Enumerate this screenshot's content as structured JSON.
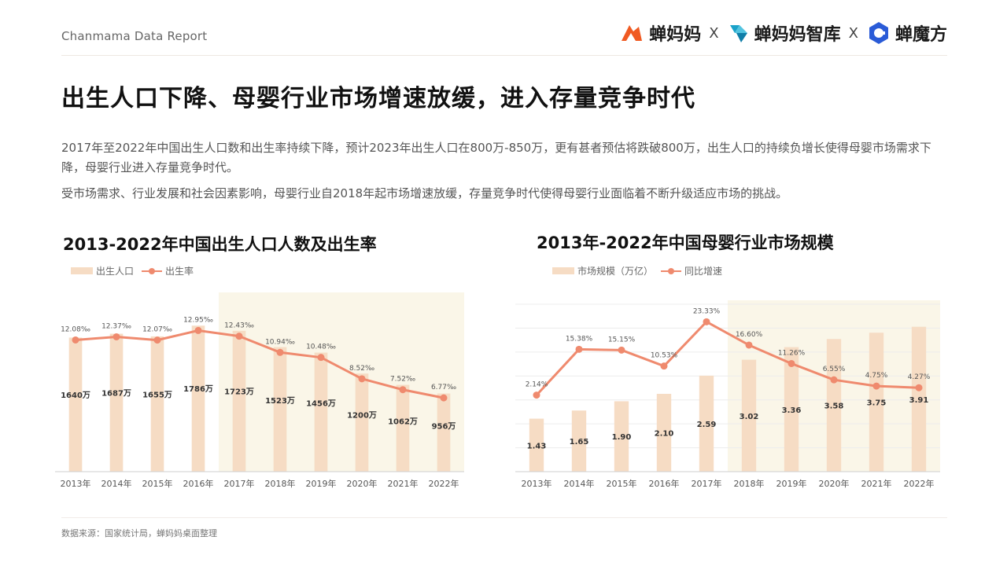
{
  "header": {
    "brand_tag": "Chanmama Data Report",
    "logos": [
      {
        "name": "蝉妈妈",
        "color": "#f05a22"
      },
      {
        "name": "蝉妈妈智库",
        "color": "#1aa2c9"
      },
      {
        "name": "蝉魔方",
        "color": "#2a5bd7"
      }
    ],
    "separator": "X"
  },
  "page": {
    "title": "出生人口下降、母婴行业市场增速放缓，进入存量竞争时代",
    "paragraph1": "2017年至2022年中国出生人口数和出生率持续下降，预计2023年出生人口在800万-850万，更有甚者预估将跌破800万，出生人口的持续负增长使得母婴市场需求下降，母婴行业进入存量竞争时代。",
    "paragraph2": "受市场需求、行业发展和社会因素影响，母婴行业自2018年起市场增速放缓，存量竞争时代使得母婴行业面临着不断升级适应市场的挑战。"
  },
  "footer": {
    "source": "数据来源：国家统计局，蝉妈妈桌面整理"
  },
  "colors": {
    "bar": "#f6dcc4",
    "line": "#ef8a6e",
    "highlight": "#faf6e8"
  },
  "chart_data": [
    {
      "type": "bar+line",
      "title": "2013-2022年中国出生人口人数及出生率",
      "categories": [
        "2013年",
        "2014年",
        "2015年",
        "2016年",
        "2017年",
        "2018年",
        "2019年",
        "2020年",
        "2021年",
        "2022年"
      ],
      "series": [
        {
          "name": "出生人口",
          "type": "bar",
          "values": [
            1640,
            1687,
            1655,
            1786,
            1723,
            1523,
            1456,
            1200,
            1062,
            956
          ],
          "labels": [
            "1640万",
            "1687万",
            "1655万",
            "1786万",
            "1723万",
            "1523万",
            "1456万",
            "1200万",
            "1062万",
            "956万"
          ]
        },
        {
          "name": "出生率",
          "type": "line",
          "values": [
            12.08,
            12.37,
            12.07,
            12.95,
            12.43,
            10.94,
            10.48,
            8.52,
            7.52,
            6.77
          ],
          "labels": [
            "12.08‰",
            "12.37‰",
            "12.07‰",
            "12.95‰",
            "12.43‰",
            "10.94‰",
            "10.48‰",
            "8.52‰",
            "7.52‰",
            "6.77‰"
          ]
        }
      ],
      "bar_ylim": [
        0,
        2000
      ],
      "line_ylim": [
        0,
        15
      ],
      "highlight_range": [
        "2017年",
        "2022年"
      ],
      "legend": "top-left"
    },
    {
      "type": "bar+line",
      "title": "2013年-2022年中国母婴行业市场规模",
      "categories": [
        "2013年",
        "2014年",
        "2015年",
        "2016年",
        "2017年",
        "2018年",
        "2019年",
        "2020年",
        "2021年",
        "2022年"
      ],
      "series": [
        {
          "name": "市场规模（万亿）",
          "type": "bar",
          "values": [
            1.43,
            1.65,
            1.9,
            2.1,
            2.59,
            3.02,
            3.36,
            3.58,
            3.75,
            3.91
          ],
          "labels": [
            "1.43",
            "1.65",
            "1.90",
            "2.10",
            "2.59",
            "3.02",
            "3.36",
            "3.58",
            "3.75",
            "3.91"
          ]
        },
        {
          "name": "同比增速",
          "type": "line",
          "values": [
            2.14,
            15.38,
            15.15,
            10.53,
            23.33,
            16.6,
            11.26,
            6.55,
            4.75,
            4.27
          ],
          "labels": [
            "2.14%",
            "15.38%",
            "15.15%",
            "10.53%",
            "23.33%",
            "16.60%",
            "11.26%",
            "6.55%",
            "4.75%",
            "4.27%"
          ]
        }
      ],
      "bar_ylim": [
        0,
        4.2
      ],
      "line_ylim": [
        -20,
        25
      ],
      "highlight_range": [
        "2018年",
        "2022年"
      ],
      "grid": true,
      "legend": "top-left"
    }
  ]
}
